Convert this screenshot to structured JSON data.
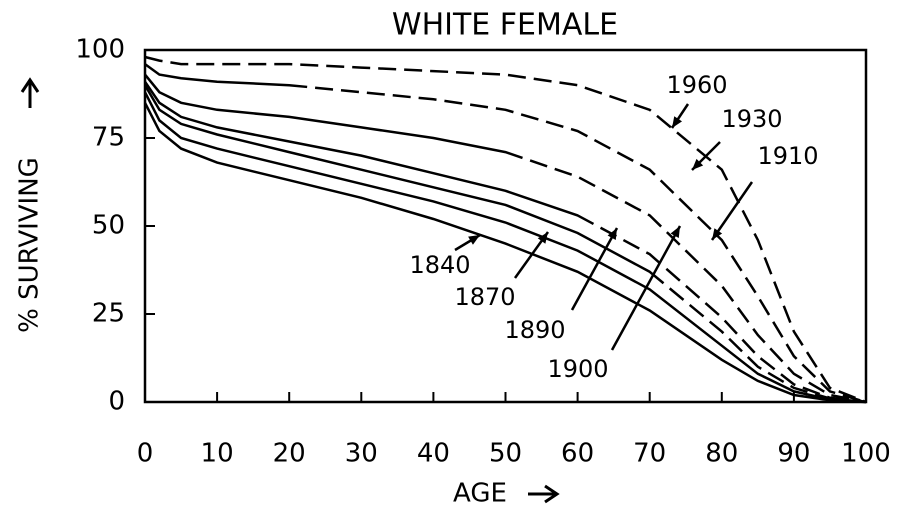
{
  "chart_data": {
    "type": "line",
    "title": "WHITE FEMALE",
    "x_label": "AGE",
    "y_label": "% SURVIVING",
    "x": [
      0,
      2,
      5,
      10,
      20,
      30,
      40,
      50,
      60,
      70,
      80,
      85,
      90,
      95,
      100
    ],
    "series": [
      {
        "name": "1840",
        "color": "#000000",
        "values": [
          85,
          77,
          72,
          68,
          63,
          58,
          52,
          45,
          37,
          26,
          12,
          6,
          2,
          0.5,
          0
        ]
      },
      {
        "name": "1870",
        "color": "#000000",
        "values": [
          88,
          80,
          75,
          72,
          67,
          62,
          57,
          51,
          43,
          32,
          16,
          8,
          3,
          0.7,
          0
        ]
      },
      {
        "name": "1890",
        "color": "#000000",
        "values": [
          90,
          83,
          79,
          76,
          71,
          66,
          61,
          56,
          48,
          37,
          20,
          10,
          4,
          1,
          0
        ],
        "dashed_from": 70
      },
      {
        "name": "1900",
        "color": "#000000",
        "values": [
          91,
          85,
          81,
          78,
          74,
          70,
          65,
          60,
          53,
          42,
          24,
          13,
          5,
          1.2,
          0
        ],
        "dashed_from": 60
      },
      {
        "name": "1910",
        "color": "#000000",
        "values": [
          93,
          88,
          85,
          83,
          81,
          78,
          75,
          71,
          64,
          53,
          33,
          19,
          8,
          2,
          0
        ],
        "dashed_from": 50
      },
      {
        "name": "1930",
        "color": "#000000",
        "values": [
          96,
          93,
          92,
          91,
          90,
          88,
          86,
          83,
          77,
          66,
          46,
          30,
          13,
          3,
          0
        ],
        "dashed_from": 20
      },
      {
        "name": "1960",
        "color": "#000000",
        "values": [
          98,
          97,
          96,
          96,
          96,
          95,
          94,
          93,
          90,
          83,
          66,
          46,
          20,
          4,
          0
        ],
        "dashed_from": 0
      }
    ],
    "xlim": [
      0,
      100
    ],
    "xticks": [
      0,
      10,
      20,
      30,
      40,
      50,
      60,
      70,
      80,
      90,
      100
    ],
    "ylim": [
      0,
      100
    ],
    "yticks": [
      0,
      25,
      50,
      75,
      100
    ],
    "grid": false
  }
}
